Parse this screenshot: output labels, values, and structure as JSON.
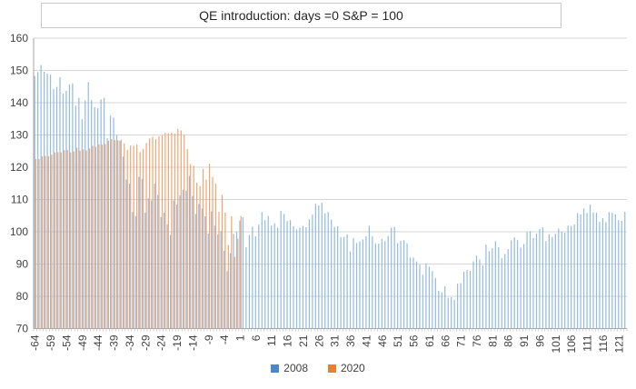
{
  "title": "QE introduction: days =0 S&P = 100",
  "legend": [
    {
      "label": "2008",
      "color": "#4e87c5"
    },
    {
      "label": "2020",
      "color": "#ed7d31"
    }
  ],
  "colors": {
    "gridline": "#d6d6d6",
    "axis_line": "#a6a6a6",
    "tick_mark": "#bfbfbf",
    "text": "#404040",
    "title_text": "#262626",
    "title_border": "#c9c9c9",
    "bar_2008": "#87b2dd",
    "bar_2020": "#f09b63"
  },
  "chart_data": {
    "type": "bar",
    "title": "QE introduction: days =0 S&P = 100",
    "xlabel": "",
    "ylabel": "",
    "ylim": [
      70,
      160
    ],
    "y_ticks": [
      160,
      150,
      140,
      130,
      120,
      110,
      100,
      90,
      80,
      70
    ],
    "x_tick_labels": [
      -64,
      -59,
      -54,
      -49,
      -44,
      -39,
      -34,
      -29,
      -24,
      -19,
      -14,
      -9,
      -4,
      1,
      6,
      11,
      16,
      21,
      26,
      31,
      36,
      41,
      46,
      51,
      56,
      61,
      66,
      71,
      76,
      81,
      86,
      91,
      96,
      101,
      106,
      111,
      116,
      121
    ],
    "grid": true,
    "legend_position": "bottom",
    "categories": [
      -64,
      -63,
      -62,
      -61,
      -60,
      -59,
      -58,
      -57,
      -56,
      -55,
      -54,
      -53,
      -52,
      -51,
      -50,
      -49,
      -48,
      -47,
      -46,
      -45,
      -44,
      -43,
      -42,
      -41,
      -40,
      -39,
      -38,
      -37,
      -36,
      -35,
      -34,
      -33,
      -32,
      -31,
      -30,
      -29,
      -28,
      -27,
      -26,
      -25,
      -24,
      -23,
      -22,
      -21,
      -20,
      -19,
      -18,
      -17,
      -16,
      -15,
      -14,
      -13,
      -12,
      -11,
      -10,
      -9,
      -8,
      -7,
      -6,
      -5,
      -4,
      -3,
      -2,
      -1,
      0,
      1,
      2,
      3,
      4,
      5,
      6,
      7,
      8,
      9,
      10,
      11,
      12,
      13,
      14,
      15,
      16,
      17,
      18,
      19,
      20,
      21,
      22,
      23,
      24,
      25,
      26,
      27,
      28,
      29,
      30,
      31,
      32,
      33,
      34,
      35,
      36,
      37,
      38,
      39,
      40,
      41,
      42,
      43,
      44,
      45,
      46,
      47,
      48,
      49,
      50,
      51,
      52,
      53,
      54,
      55,
      56,
      57,
      58,
      59,
      60,
      61,
      62,
      63,
      64,
      65,
      66,
      67,
      68,
      69,
      70,
      71,
      72,
      73,
      74,
      75,
      76,
      77,
      78,
      79,
      80,
      81,
      82,
      83,
      84,
      85,
      86,
      87,
      88,
      89,
      90,
      91,
      92,
      93,
      94,
      95,
      96,
      97,
      98,
      99,
      100,
      101,
      102,
      103,
      104,
      105,
      106,
      107,
      108,
      109,
      110,
      111,
      112,
      113,
      114,
      115,
      116,
      117,
      118,
      119,
      120,
      121,
      122,
      123
    ],
    "series": [
      {
        "name": "2008",
        "color": "#4e87c5",
        "bar_color": "#87b2dd",
        "start_day": -64,
        "values": [
          148.3,
          149.5,
          151.7,
          149.6,
          149.0,
          148.7,
          144.2,
          144.9,
          147.9,
          142.8,
          143.7,
          145.7,
          146.0,
          139.1,
          141.5,
          134.9,
          140.7,
          146.4,
          140.8,
          138.6,
          138.3,
          141.0,
          141.5,
          129.0,
          136.0,
          135.4,
          130.0,
          128.2,
          123.3,
          116.2,
          114.9,
          106.1,
          104.9,
          117.0,
          116.4,
          105.9,
          110.4,
          109.7,
          114.9,
          111.4,
          104.6,
          105.9,
          102.3,
          99.0,
          109.7,
          108.5,
          111.3,
          113.0,
          112.7,
          117.3,
          111.1,
          105.5,
          108.6,
          107.2,
          104.8,
          99.4,
          106.3,
          101.9,
          99.2,
          100.2,
          94.1,
          87.8,
          93.3,
          99.3,
          100.0,
          103.5,
          104.5,
          95.2,
          99.0,
          101.6,
          98.6,
          102.2,
          106.1,
          103.6,
          104.9,
          101.9,
          102.6,
          101.3,
          106.5,
          105.5,
          103.3,
          103.6,
          101.7,
          100.7,
          101.3,
          101.8,
          101.4,
          103.9,
          105.3,
          108.7,
          108.2,
          109.0,
          105.7,
          106.1,
          103.8,
          101.5,
          101.7,
          98.3,
          98.4,
          99.2,
          93.9,
          98.0,
          96.5,
          97.0,
          97.6,
          98.6,
          101.9,
          98.6,
          96.3,
          96.3,
          97.8,
          97.1,
          98.7,
          101.3,
          101.5,
          96.5,
          97.2,
          97.4,
          96.4,
          92.0,
          92.0,
          90.8,
          89.8,
          86.7,
          90.2,
          89.2,
          87.8,
          85.7,
          81.7,
          81.2,
          83.1,
          79.6,
          79.7,
          78.9,
          83.9,
          84.1,
          87.6,
          88.2,
          87.9,
          90.8,
          92.6,
          91.4,
          89.6,
          96.0,
          94.0,
          94.9,
          97.1,
          95.2,
          91.8,
          93.1,
          94.6,
          97.3,
          98.3,
          97.4,
          95.1,
          96.2,
          99.9,
          100.2,
          98.1,
          99.4,
          100.9,
          101.4,
          97.1,
          99.2,
          98.4,
          99.4,
          101.0,
          100.0,
          99.7,
          101.9,
          101.8,
          102.3,
          105.8,
          105.4,
          107.2,
          105.8,
          108.4,
          106.0,
          105.9,
          103.1,
          104.2,
          103.0,
          106.1,
          105.9,
          105.4,
          103.6,
          103.4,
          106.2
        ]
      },
      {
        "name": "2020",
        "color": "#ed7d31",
        "bar_color": "#f09b63",
        "start_day": -64,
        "values": [
          122.5,
          122.5,
          123.4,
          123.5,
          123.4,
          123.9,
          124.6,
          124.7,
          124.6,
          125.3,
          125.3,
          124.6,
          124.9,
          126.0,
          125.1,
          125.6,
          125.2,
          125.8,
          126.6,
          126.3,
          127.1,
          127.0,
          127.2,
          128.2,
          128.7,
          128.4,
          128.4,
          128.6,
          127.4,
          125.4,
          126.7,
          126.6,
          127.0,
          124.7,
          125.7,
          127.5,
          128.9,
          129.4,
          128.7,
          129.6,
          129.9,
          130.7,
          130.5,
          130.7,
          130.4,
          131.9,
          131.4,
          130.0,
          125.6,
          121.0,
          120.5,
          115.2,
          114.2,
          119.5,
          116.2,
          121.1,
          117.0,
          114.9,
          106.2,
          111.5,
          106.0,
          95.9,
          104.8,
          92.2,
          97.8,
          104.9
        ]
      }
    ]
  }
}
